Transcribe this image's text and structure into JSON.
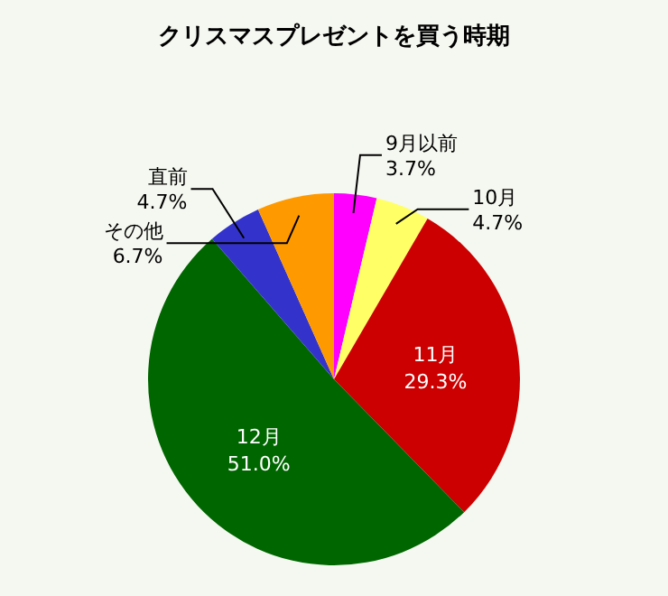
{
  "chart_data": {
    "type": "pie",
    "title": "クリスマスプレゼントを買う時期",
    "categories": [
      "9月以前",
      "10月",
      "11月",
      "12月",
      "直前",
      "その他"
    ],
    "values": [
      3.7,
      4.7,
      29.3,
      51.0,
      4.7,
      6.7
    ],
    "colors": [
      "#ff00ff",
      "#ffff66",
      "#cc0000",
      "#006600",
      "#3333cc",
      "#ff9900"
    ],
    "value_labels": [
      "3.7%",
      "4.7%",
      "29.3%",
      "51.0%",
      "4.7%",
      "6.7%"
    ],
    "legend": false
  }
}
